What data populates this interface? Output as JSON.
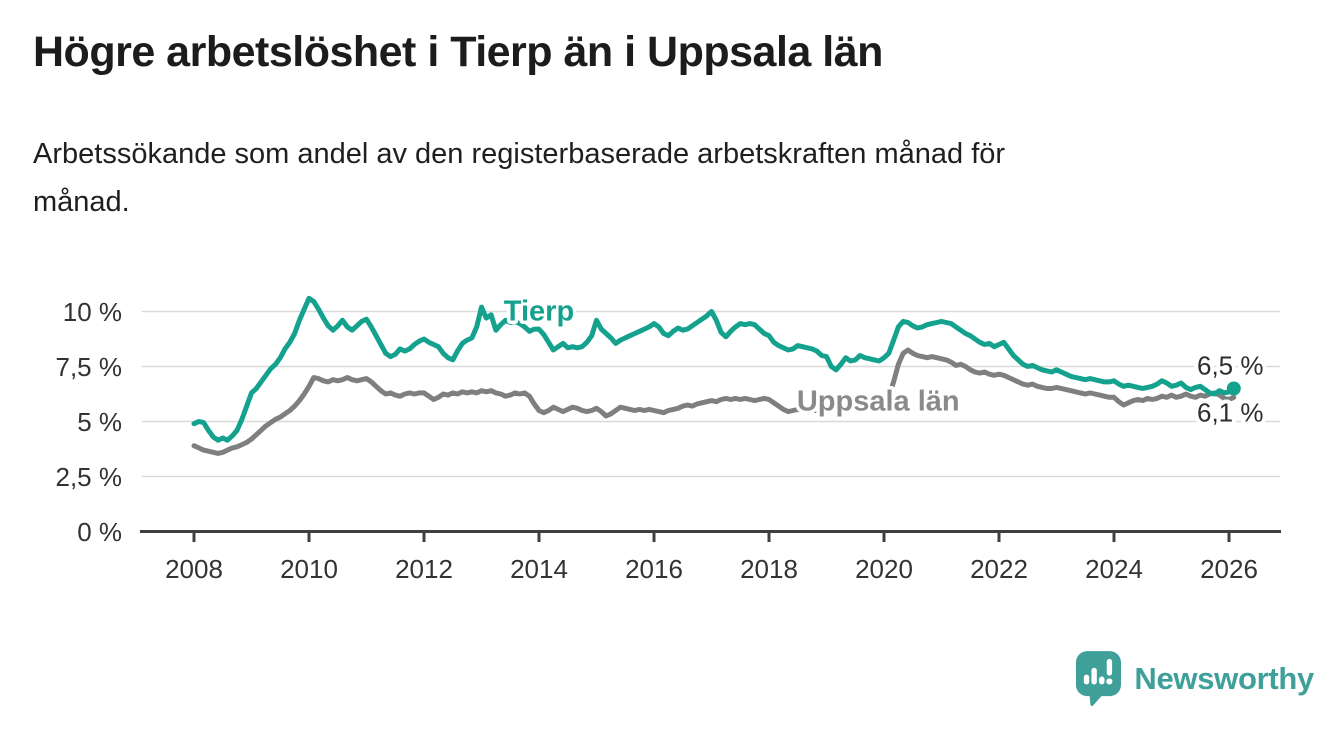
{
  "title": "Högre arbetslöshet i Tierp än i Uppsala län",
  "subtitle_lines": [
    "Arbetssökande som andel av den registerbaserade arbetskraften månad för",
    "månad."
  ],
  "logo": {
    "text": "Newsworthy",
    "icon": "speech-bubble-bar-chart",
    "color": "#3fa09a"
  },
  "colors": {
    "tierp_line": "#14a28e",
    "uppsala_line": "#7f7f7f",
    "uppsala_label": "#8a8a8a",
    "grid": "#d9d9d9",
    "axis": "#3f3f3f",
    "text": "#1c1c1c"
  },
  "chart_data": {
    "type": "line",
    "unit": "%",
    "frequency": "monthly",
    "x_start": "2008-01",
    "x_end": "2026-02",
    "grid": true,
    "legend_position": "direct-labels-on-lines",
    "ylim": [
      0,
      11
    ],
    "xlim": [
      2007.1,
      2026.9
    ],
    "y_axis": {
      "ticks": [
        {
          "value": 0,
          "label": "0 %"
        },
        {
          "value": 2.5,
          "label": "2,5 %"
        },
        {
          "value": 5,
          "label": "5 %"
        },
        {
          "value": 7.5,
          "label": "7,5 %"
        },
        {
          "value": 10,
          "label": "10 %"
        }
      ]
    },
    "x_axis": {
      "ticks": [
        {
          "value": 2008,
          "label": "2008"
        },
        {
          "value": 2010,
          "label": "2010"
        },
        {
          "value": 2012,
          "label": "2012"
        },
        {
          "value": 2014,
          "label": "2014"
        },
        {
          "value": 2016,
          "label": "2016"
        },
        {
          "value": 2018,
          "label": "2018"
        },
        {
          "value": 2020,
          "label": "2020"
        },
        {
          "value": 2022,
          "label": "2022"
        },
        {
          "value": 2024,
          "label": "2024"
        },
        {
          "value": 2026,
          "label": "2026"
        }
      ]
    },
    "series": [
      {
        "name": "Tierp",
        "color": "#14a28e",
        "values": [
          4.9,
          5.0,
          4.95,
          4.6,
          4.3,
          4.15,
          4.25,
          4.15,
          4.35,
          4.6,
          5.1,
          5.7,
          6.3,
          6.5,
          6.8,
          7.1,
          7.4,
          7.6,
          7.9,
          8.3,
          8.6,
          9.0,
          9.6,
          10.1,
          10.6,
          10.45,
          10.1,
          9.7,
          9.35,
          9.15,
          9.35,
          9.6,
          9.3,
          9.15,
          9.35,
          9.55,
          9.65,
          9.3,
          8.9,
          8.5,
          8.1,
          7.95,
          8.05,
          8.3,
          8.2,
          8.3,
          8.5,
          8.65,
          8.75,
          8.6,
          8.5,
          8.4,
          8.1,
          7.9,
          7.8,
          8.2,
          8.55,
          8.7,
          8.8,
          9.3,
          10.2,
          9.7,
          9.85,
          9.15,
          9.4,
          9.6,
          9.5,
          9.55,
          9.45,
          9.3,
          9.1,
          9.2,
          9.2,
          8.95,
          8.6,
          8.25,
          8.4,
          8.55,
          8.35,
          8.4,
          8.35,
          8.4,
          8.6,
          8.9,
          9.6,
          9.2,
          9.0,
          8.8,
          8.55,
          8.7,
          8.8,
          8.9,
          9.0,
          9.1,
          9.2,
          9.3,
          9.45,
          9.3,
          9.0,
          8.9,
          9.1,
          9.25,
          9.15,
          9.2,
          9.35,
          9.5,
          9.65,
          9.8,
          10.0,
          9.6,
          9.05,
          8.85,
          9.1,
          9.3,
          9.45,
          9.4,
          9.45,
          9.4,
          9.2,
          9.0,
          8.9,
          8.6,
          8.45,
          8.35,
          8.25,
          8.3,
          8.45,
          8.4,
          8.35,
          8.3,
          8.2,
          8.0,
          7.95,
          7.5,
          7.35,
          7.6,
          7.9,
          7.75,
          7.8,
          8.0,
          7.9,
          7.85,
          7.8,
          7.75,
          7.9,
          8.1,
          8.7,
          9.3,
          9.55,
          9.5,
          9.35,
          9.25,
          9.3,
          9.4,
          9.45,
          9.5,
          9.55,
          9.5,
          9.45,
          9.3,
          9.15,
          9.0,
          8.9,
          8.75,
          8.6,
          8.5,
          8.55,
          8.4,
          8.5,
          8.6,
          8.3,
          8.0,
          7.8,
          7.6,
          7.5,
          7.55,
          7.45,
          7.35,
          7.3,
          7.25,
          7.35,
          7.25,
          7.15,
          7.05,
          7.0,
          6.95,
          6.9,
          6.95,
          6.9,
          6.85,
          6.8,
          6.8,
          6.85,
          6.7,
          6.6,
          6.65,
          6.6,
          6.55,
          6.5,
          6.55,
          6.6,
          6.7,
          6.85,
          6.75,
          6.6,
          6.65,
          6.75,
          6.55,
          6.45,
          6.55,
          6.6,
          6.45,
          6.3,
          6.25,
          6.4,
          6.3,
          6.35,
          6.5
        ]
      },
      {
        "name": "Uppsala län",
        "color": "#7f7f7f",
        "values": [
          3.9,
          3.8,
          3.7,
          3.65,
          3.6,
          3.55,
          3.6,
          3.7,
          3.8,
          3.85,
          3.95,
          4.05,
          4.2,
          4.4,
          4.6,
          4.8,
          4.95,
          5.1,
          5.2,
          5.35,
          5.5,
          5.7,
          5.95,
          6.25,
          6.6,
          7.0,
          6.95,
          6.85,
          6.8,
          6.9,
          6.85,
          6.9,
          7.0,
          6.9,
          6.85,
          6.9,
          6.95,
          6.8,
          6.6,
          6.4,
          6.25,
          6.3,
          6.2,
          6.15,
          6.25,
          6.3,
          6.25,
          6.3,
          6.3,
          6.15,
          6.0,
          6.1,
          6.25,
          6.2,
          6.3,
          6.25,
          6.35,
          6.3,
          6.35,
          6.3,
          6.4,
          6.35,
          6.4,
          6.3,
          6.25,
          6.15,
          6.2,
          6.3,
          6.25,
          6.3,
          6.15,
          5.8,
          5.5,
          5.4,
          5.5,
          5.65,
          5.55,
          5.45,
          5.55,
          5.65,
          5.6,
          5.5,
          5.45,
          5.5,
          5.6,
          5.45,
          5.25,
          5.35,
          5.5,
          5.65,
          5.6,
          5.55,
          5.5,
          5.55,
          5.5,
          5.55,
          5.5,
          5.45,
          5.4,
          5.5,
          5.55,
          5.6,
          5.7,
          5.75,
          5.7,
          5.8,
          5.85,
          5.9,
          5.95,
          5.9,
          6.0,
          6.05,
          6.0,
          6.05,
          6.0,
          6.05,
          6.0,
          5.95,
          6.0,
          6.05,
          6.0,
          5.85,
          5.7,
          5.55,
          5.45,
          5.5,
          5.55,
          5.5,
          5.45,
          5.5,
          5.5,
          5.5,
          5.5,
          5.55,
          5.5,
          5.55,
          5.6,
          5.65,
          5.6,
          5.65,
          5.7,
          5.75,
          5.8,
          5.85,
          5.9,
          6.1,
          6.8,
          7.6,
          8.1,
          8.25,
          8.1,
          8.0,
          7.95,
          7.9,
          7.95,
          7.9,
          7.85,
          7.8,
          7.7,
          7.55,
          7.6,
          7.5,
          7.35,
          7.25,
          7.2,
          7.25,
          7.15,
          7.1,
          7.15,
          7.1,
          7.0,
          6.9,
          6.8,
          6.7,
          6.65,
          6.7,
          6.6,
          6.55,
          6.5,
          6.5,
          6.55,
          6.5,
          6.45,
          6.4,
          6.35,
          6.3,
          6.25,
          6.3,
          6.25,
          6.2,
          6.15,
          6.1,
          6.1,
          5.9,
          5.75,
          5.85,
          5.95,
          6.0,
          5.95,
          6.05,
          6.0,
          6.05,
          6.15,
          6.1,
          6.2,
          6.1,
          6.15,
          6.25,
          6.15,
          6.1,
          6.2,
          6.15,
          6.25,
          6.3,
          6.2,
          6.05,
          6.0,
          6.1
        ]
      }
    ],
    "series_labels": [
      {
        "text": "Tierp",
        "color": "#14a28e",
        "anchor_x": 2014.0,
        "anchor_y": 10.05
      },
      {
        "text": "Uppsala län",
        "color": "#8a8a8a",
        "anchor_x": 2019.9,
        "anchor_y": 5.95
      }
    ],
    "end_labels": [
      {
        "series": "Tierp",
        "text": "6,5 %"
      },
      {
        "series": "Uppsala län",
        "text": "6,1 %"
      }
    ]
  }
}
